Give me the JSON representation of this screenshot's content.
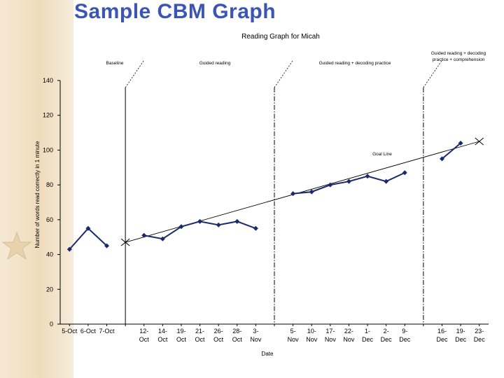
{
  "page": {
    "title": "Sample CBM Graph"
  },
  "colors": {
    "series": "#1b2a6b",
    "trend": "#000000",
    "title": "#3a55b4",
    "background_accent": "#efdcbc"
  },
  "icons": {
    "decoration": "star-icon"
  },
  "chart_data": {
    "type": "line",
    "title": "Reading Graph for Micah",
    "xlabel": "Date",
    "ylabel": "Number of words read correctly in 1 minute",
    "ylim": [
      0,
      140
    ],
    "yticks": [
      0,
      20,
      40,
      60,
      80,
      100,
      120,
      140
    ],
    "grid": false,
    "categories": [
      [
        "5-Oct"
      ],
      [
        "6-Oct"
      ],
      [
        "7-Oct"
      ],
      [
        ""
      ],
      [
        "12-",
        "Oct"
      ],
      [
        "14-",
        "Oct"
      ],
      [
        "19-",
        "Oct"
      ],
      [
        "21-",
        "Oct"
      ],
      [
        "26-",
        "Oct"
      ],
      [
        "28-",
        "Oct"
      ],
      [
        "3-",
        "Nov"
      ],
      [
        ""
      ],
      [
        "5-",
        "Nov"
      ],
      [
        "10-",
        "Nov"
      ],
      [
        "17-",
        "Nov"
      ],
      [
        "22-",
        "Nov"
      ],
      [
        "1-",
        "Dec"
      ],
      [
        "2-",
        "Dec"
      ],
      [
        "9-",
        "Dec"
      ],
      [
        ""
      ],
      [
        "16-",
        "Dec"
      ],
      [
        "19-",
        "Dec"
      ],
      [
        "23-",
        "Dec"
      ]
    ],
    "segments": [
      {
        "name": "Baseline",
        "x_start": 0,
        "x_end": 2,
        "values": [
          43,
          55,
          45
        ]
      },
      {
        "name": "Guided reading",
        "x_start": 4,
        "x_end": 10,
        "values": [
          51,
          49,
          56,
          59,
          57,
          59,
          55
        ]
      },
      {
        "name": "Guided reading + decoding practice",
        "x_start": 12,
        "x_end": 18,
        "values": [
          75,
          76,
          80,
          82,
          85,
          82,
          87
        ]
      },
      {
        "name": "Guided reading + decoding practice + comprehension",
        "x_start": 20,
        "x_end": 21,
        "values": [
          95,
          104
        ]
      }
    ],
    "phase_changes": [
      {
        "after_index": 3,
        "style": "solid",
        "label": "Baseline"
      },
      {
        "after_index": 11,
        "style": "dashdot",
        "label": "Guided reading"
      },
      {
        "after_index": 19,
        "style": "dashdot",
        "label": "Guided reading + decoding practice"
      }
    ],
    "phase_labels": [
      {
        "text": "Baseline"
      },
      {
        "text": "Guided reading"
      },
      {
        "text": "Guided reading + decoding practice"
      },
      {
        "lines": [
          "Guided reading + decoding",
          "practice + comprehension"
        ]
      }
    ],
    "goal_line": {
      "label": "Goal Line",
      "start": {
        "x": 3,
        "y": 47
      },
      "end": {
        "x": 22,
        "y": 105
      }
    }
  }
}
